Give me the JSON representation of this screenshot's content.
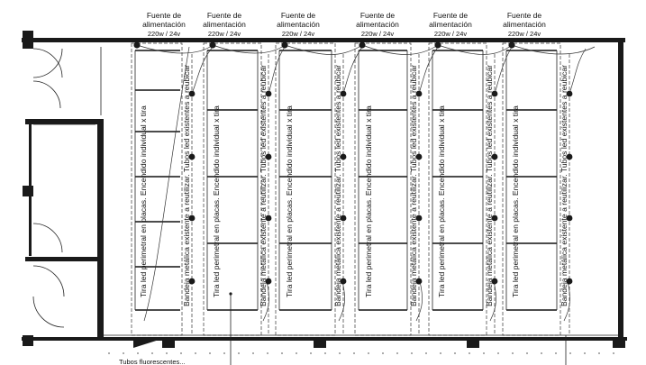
{
  "power_supplies": [
    {
      "label_line1": "Fuente de",
      "label_line2": "alimentación",
      "spec": "220w / 24v"
    },
    {
      "label_line1": "Fuente de",
      "label_line2": "alimentación",
      "spec": "220w / 24v"
    },
    {
      "label_line1": "Fuente de",
      "label_line2": "alimentación",
      "spec": "220w / 24v"
    },
    {
      "label_line1": "Fuente de",
      "label_line2": "alimentación",
      "spec": "220w / 24v"
    },
    {
      "label_line1": "Fuente de",
      "label_line2": "alimentación",
      "spec": "220w / 24v"
    },
    {
      "label_line1": "Fuente de",
      "label_line2": "alimentación",
      "spec": "220w / 24v"
    }
  ],
  "notes": {
    "strip_perimeter": "Tira led perimetral en placas. Encendido individual x tira",
    "tray_existing": "Bandeja metálica existente a reutilizar. Tubos led existentes a reubicar"
  },
  "bottom_note": "Tubos fluorescentes..."
}
